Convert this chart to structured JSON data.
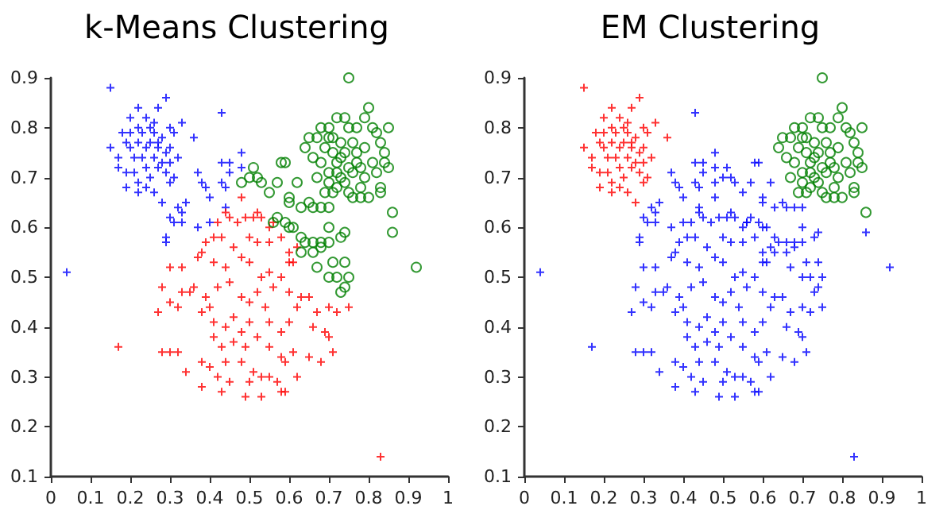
{
  "chart_data": [
    {
      "type": "scatter",
      "title": "k-Means Clustering",
      "xlim": [
        0,
        1
      ],
      "ylim": [
        0.1,
        0.9
      ],
      "xticks": [
        0,
        0.1,
        0.2,
        0.3,
        0.4,
        0.5,
        0.6,
        0.7,
        0.8,
        0.9,
        1
      ],
      "yticks": [
        0.1,
        0.2,
        0.3,
        0.4,
        0.5,
        0.6,
        0.7,
        0.8,
        0.9
      ],
      "series": [
        {
          "color": "#0000ff",
          "marker": "cross",
          "x": [
            0.15,
            0.15,
            0.22,
            0.24,
            0.29,
            0.27,
            0.2,
            0.18,
            0.2,
            0.22,
            0.25,
            0.26,
            0.28,
            0.3,
            0.31,
            0.33,
            0.36,
            0.3,
            0.27,
            0.24,
            0.22,
            0.2,
            0.19,
            0.23,
            0.26,
            0.28,
            0.3,
            0.32,
            0.17,
            0.17,
            0.19,
            0.21,
            0.24,
            0.27,
            0.29,
            0.31,
            0.3,
            0.25,
            0.22,
            0.19,
            0.22,
            0.26,
            0.24,
            0.28,
            0.29,
            0.21,
            0.25,
            0.23,
            0.26,
            0.27,
            0.43,
            0.43,
            0.45,
            0.48,
            0.48,
            0.45,
            0.37,
            0.38,
            0.39,
            0.4,
            0.43,
            0.44,
            0.34,
            0.32,
            0.3,
            0.33,
            0.33,
            0.31,
            0.37,
            0.4,
            0.44,
            0.29,
            0.29,
            0.04
          ],
          "values": [
            0.88,
            0.76,
            0.84,
            0.82,
            0.86,
            0.84,
            0.82,
            0.79,
            0.79,
            0.8,
            0.8,
            0.79,
            0.78,
            0.8,
            0.79,
            0.81,
            0.78,
            0.76,
            0.76,
            0.76,
            0.77,
            0.76,
            0.77,
            0.74,
            0.74,
            0.73,
            0.73,
            0.74,
            0.74,
            0.72,
            0.71,
            0.71,
            0.72,
            0.72,
            0.71,
            0.7,
            0.69,
            0.7,
            0.69,
            0.68,
            0.67,
            0.67,
            0.68,
            0.65,
            0.75,
            0.74,
            0.77,
            0.79,
            0.81,
            0.77,
            0.83,
            0.73,
            0.73,
            0.75,
            0.72,
            0.71,
            0.71,
            0.69,
            0.68,
            0.66,
            0.69,
            0.68,
            0.65,
            0.64,
            0.62,
            0.63,
            0.61,
            0.61,
            0.6,
            0.61,
            0.64,
            0.58,
            0.57,
            0.51
          ]
        },
        {
          "color": "#ff0000",
          "marker": "cross",
          "x": [
            0.48,
            0.44,
            0.45,
            0.42,
            0.49,
            0.52,
            0.53,
            0.51,
            0.47,
            0.56,
            0.55,
            0.41,
            0.39,
            0.38,
            0.43,
            0.46,
            0.5,
            0.52,
            0.55,
            0.58,
            0.6,
            0.62,
            0.37,
            0.41,
            0.44,
            0.48,
            0.5,
            0.53,
            0.55,
            0.6,
            0.61,
            0.3,
            0.33,
            0.36,
            0.35,
            0.33,
            0.28,
            0.39,
            0.42,
            0.45,
            0.48,
            0.5,
            0.52,
            0.54,
            0.56,
            0.58,
            0.6,
            0.63,
            0.65,
            0.62,
            0.67,
            0.7,
            0.72,
            0.75,
            0.27,
            0.3,
            0.32,
            0.38,
            0.4,
            0.41,
            0.44,
            0.46,
            0.48,
            0.5,
            0.52,
            0.55,
            0.58,
            0.6,
            0.66,
            0.69,
            0.7,
            0.41,
            0.43,
            0.46,
            0.49,
            0.55,
            0.58,
            0.61,
            0.65,
            0.71,
            0.28,
            0.3,
            0.32,
            0.38,
            0.4,
            0.44,
            0.48,
            0.51,
            0.55,
            0.59,
            0.62,
            0.68,
            0.34,
            0.42,
            0.45,
            0.5,
            0.53,
            0.57,
            0.38,
            0.43,
            0.49,
            0.53,
            0.58,
            0.59,
            0.17,
            0.83
          ],
          "values": [
            0.66,
            0.63,
            0.62,
            0.61,
            0.62,
            0.63,
            0.62,
            0.62,
            0.61,
            0.61,
            0.6,
            0.58,
            0.57,
            0.55,
            0.58,
            0.56,
            0.58,
            0.57,
            0.57,
            0.58,
            0.55,
            0.56,
            0.54,
            0.53,
            0.52,
            0.54,
            0.53,
            0.5,
            0.51,
            0.53,
            0.53,
            0.52,
            0.52,
            0.48,
            0.47,
            0.47,
            0.48,
            0.46,
            0.48,
            0.49,
            0.46,
            0.45,
            0.47,
            0.44,
            0.48,
            0.5,
            0.47,
            0.46,
            0.46,
            0.44,
            0.43,
            0.44,
            0.43,
            0.44,
            0.43,
            0.45,
            0.44,
            0.43,
            0.44,
            0.41,
            0.4,
            0.42,
            0.39,
            0.41,
            0.38,
            0.41,
            0.39,
            0.41,
            0.4,
            0.39,
            0.38,
            0.38,
            0.36,
            0.37,
            0.36,
            0.36,
            0.34,
            0.35,
            0.34,
            0.35,
            0.35,
            0.35,
            0.35,
            0.33,
            0.32,
            0.33,
            0.33,
            0.31,
            0.3,
            0.33,
            0.3,
            0.33,
            0.31,
            0.3,
            0.29,
            0.29,
            0.3,
            0.29,
            0.28,
            0.27,
            0.26,
            0.26,
            0.27,
            0.27,
            0.36,
            0.14
          ]
        },
        {
          "color": "#008000",
          "marker": "circle",
          "x": [
            0.75,
            0.8,
            0.72,
            0.74,
            0.79,
            0.7,
            0.75,
            0.77,
            0.81,
            0.85,
            0.82,
            0.65,
            0.67,
            0.7,
            0.73,
            0.76,
            0.79,
            0.83,
            0.64,
            0.69,
            0.71,
            0.74,
            0.77,
            0.84,
            0.66,
            0.68,
            0.72,
            0.75,
            0.78,
            0.81,
            0.84,
            0.7,
            0.73,
            0.76,
            0.79,
            0.82,
            0.67,
            0.7,
            0.72,
            0.75,
            0.78,
            0.74,
            0.69,
            0.71,
            0.76,
            0.78,
            0.8,
            0.83,
            0.83,
            0.85,
            0.72,
            0.77,
            0.73,
            0.71,
            0.68,
            0.86,
            0.51,
            0.5,
            0.52,
            0.48,
            0.53,
            0.55,
            0.57,
            0.58,
            0.59,
            0.6,
            0.6,
            0.62,
            0.63,
            0.65,
            0.66,
            0.68,
            0.7,
            0.57,
            0.59,
            0.6,
            0.61,
            0.63,
            0.64,
            0.66,
            0.68,
            0.7,
            0.68,
            0.66,
            0.63,
            0.67,
            0.7,
            0.74,
            0.73,
            0.71,
            0.74,
            0.7,
            0.72,
            0.75,
            0.74,
            0.73,
            0.86,
            0.92,
            0.56
          ],
          "values": [
            0.9,
            0.84,
            0.82,
            0.82,
            0.82,
            0.8,
            0.8,
            0.8,
            0.8,
            0.8,
            0.79,
            0.78,
            0.78,
            0.78,
            0.77,
            0.77,
            0.76,
            0.77,
            0.76,
            0.76,
            0.75,
            0.75,
            0.75,
            0.75,
            0.74,
            0.73,
            0.73,
            0.72,
            0.72,
            0.73,
            0.73,
            0.71,
            0.7,
            0.71,
            0.7,
            0.71,
            0.7,
            0.69,
            0.68,
            0.67,
            0.68,
            0.69,
            0.67,
            0.67,
            0.66,
            0.66,
            0.66,
            0.67,
            0.68,
            0.72,
            0.71,
            0.73,
            0.74,
            0.78,
            0.8,
            0.63,
            0.72,
            0.7,
            0.7,
            0.69,
            0.69,
            0.67,
            0.69,
            0.73,
            0.73,
            0.66,
            0.65,
            0.69,
            0.64,
            0.65,
            0.64,
            0.64,
            0.64,
            0.62,
            0.61,
            0.6,
            0.6,
            0.58,
            0.57,
            0.57,
            0.57,
            0.57,
            0.56,
            0.55,
            0.55,
            0.52,
            0.6,
            0.59,
            0.58,
            0.53,
            0.53,
            0.5,
            0.5,
            0.5,
            0.48,
            0.47,
            0.59,
            0.52,
            0.61
          ]
        }
      ]
    },
    {
      "type": "scatter",
      "title": "EM Clustering",
      "xlim": [
        0,
        1
      ],
      "ylim": [
        0.1,
        0.9
      ],
      "xticks": [
        0,
        0.1,
        0.2,
        0.3,
        0.4,
        0.5,
        0.6,
        0.7,
        0.8,
        0.9,
        1
      ],
      "yticks": [
        0.1,
        0.2,
        0.3,
        0.4,
        0.5,
        0.6,
        0.7,
        0.8,
        0.9
      ],
      "series": [
        {
          "color": "#ff0000",
          "marker": "cross",
          "x": [
            0.15,
            0.15,
            0.22,
            0.24,
            0.29,
            0.27,
            0.2,
            0.18,
            0.2,
            0.22,
            0.25,
            0.26,
            0.28,
            0.3,
            0.31,
            0.33,
            0.36,
            0.3,
            0.27,
            0.24,
            0.22,
            0.2,
            0.19,
            0.23,
            0.26,
            0.28,
            0.3,
            0.32,
            0.17,
            0.17,
            0.19,
            0.21,
            0.24,
            0.27,
            0.29,
            0.31,
            0.3,
            0.25,
            0.22,
            0.19,
            0.22,
            0.26,
            0.24,
            0.28,
            0.29,
            0.21,
            0.25,
            0.23,
            0.26,
            0.27
          ],
          "values": [
            0.88,
            0.76,
            0.84,
            0.82,
            0.86,
            0.84,
            0.82,
            0.79,
            0.79,
            0.8,
            0.8,
            0.79,
            0.78,
            0.8,
            0.79,
            0.81,
            0.78,
            0.76,
            0.76,
            0.76,
            0.77,
            0.76,
            0.77,
            0.74,
            0.74,
            0.73,
            0.73,
            0.74,
            0.74,
            0.72,
            0.71,
            0.71,
            0.72,
            0.72,
            0.71,
            0.7,
            0.69,
            0.7,
            0.69,
            0.68,
            0.67,
            0.67,
            0.68,
            0.65,
            0.75,
            0.74,
            0.77,
            0.79,
            0.81,
            0.77
          ]
        },
        {
          "color": "#0000ff",
          "marker": "cross",
          "x": [
            0.43,
            0.43,
            0.45,
            0.48,
            0.48,
            0.45,
            0.37,
            0.38,
            0.39,
            0.4,
            0.43,
            0.44,
            0.34,
            0.32,
            0.3,
            0.33,
            0.33,
            0.31,
            0.37,
            0.4,
            0.44,
            0.29,
            0.29,
            0.04,
            0.48,
            0.44,
            0.45,
            0.42,
            0.49,
            0.52,
            0.53,
            0.51,
            0.47,
            0.56,
            0.55,
            0.41,
            0.39,
            0.38,
            0.43,
            0.46,
            0.5,
            0.52,
            0.55,
            0.58,
            0.6,
            0.62,
            0.37,
            0.41,
            0.44,
            0.48,
            0.5,
            0.53,
            0.55,
            0.6,
            0.61,
            0.3,
            0.33,
            0.36,
            0.35,
            0.33,
            0.28,
            0.39,
            0.42,
            0.45,
            0.48,
            0.5,
            0.52,
            0.54,
            0.56,
            0.58,
            0.6,
            0.63,
            0.65,
            0.62,
            0.67,
            0.7,
            0.72,
            0.75,
            0.27,
            0.3,
            0.32,
            0.38,
            0.4,
            0.41,
            0.44,
            0.46,
            0.48,
            0.5,
            0.52,
            0.55,
            0.58,
            0.6,
            0.66,
            0.69,
            0.7,
            0.41,
            0.43,
            0.46,
            0.49,
            0.55,
            0.58,
            0.61,
            0.65,
            0.71,
            0.28,
            0.3,
            0.32,
            0.38,
            0.4,
            0.44,
            0.48,
            0.51,
            0.55,
            0.59,
            0.62,
            0.68,
            0.34,
            0.42,
            0.45,
            0.5,
            0.53,
            0.57,
            0.38,
            0.43,
            0.49,
            0.53,
            0.58,
            0.59,
            0.17,
            0.83,
            0.51,
            0.5,
            0.52,
            0.48,
            0.53,
            0.55,
            0.57,
            0.58,
            0.59,
            0.6,
            0.6,
            0.62,
            0.63,
            0.65,
            0.66,
            0.68,
            0.7,
            0.57,
            0.59,
            0.6,
            0.61,
            0.63,
            0.64,
            0.66,
            0.68,
            0.7,
            0.68,
            0.66,
            0.63,
            0.67,
            0.7,
            0.74,
            0.73,
            0.71,
            0.74,
            0.7,
            0.72,
            0.75,
            0.74,
            0.73,
            0.86,
            0.92,
            0.56
          ],
          "values": [
            0.83,
            0.73,
            0.73,
            0.75,
            0.72,
            0.71,
            0.71,
            0.69,
            0.68,
            0.66,
            0.69,
            0.68,
            0.65,
            0.64,
            0.62,
            0.63,
            0.61,
            0.61,
            0.6,
            0.61,
            0.64,
            0.58,
            0.57,
            0.51,
            0.66,
            0.63,
            0.62,
            0.61,
            0.62,
            0.63,
            0.62,
            0.62,
            0.61,
            0.61,
            0.6,
            0.58,
            0.57,
            0.55,
            0.58,
            0.56,
            0.58,
            0.57,
            0.57,
            0.58,
            0.55,
            0.56,
            0.54,
            0.53,
            0.52,
            0.54,
            0.53,
            0.5,
            0.51,
            0.53,
            0.53,
            0.52,
            0.52,
            0.48,
            0.47,
            0.47,
            0.48,
            0.46,
            0.48,
            0.49,
            0.46,
            0.45,
            0.47,
            0.44,
            0.48,
            0.5,
            0.47,
            0.46,
            0.46,
            0.44,
            0.43,
            0.44,
            0.43,
            0.44,
            0.43,
            0.45,
            0.44,
            0.43,
            0.44,
            0.41,
            0.4,
            0.42,
            0.39,
            0.41,
            0.38,
            0.41,
            0.39,
            0.41,
            0.4,
            0.39,
            0.38,
            0.38,
            0.36,
            0.37,
            0.36,
            0.36,
            0.34,
            0.35,
            0.34,
            0.35,
            0.35,
            0.35,
            0.35,
            0.33,
            0.32,
            0.33,
            0.33,
            0.31,
            0.3,
            0.33,
            0.3,
            0.33,
            0.31,
            0.3,
            0.29,
            0.29,
            0.3,
            0.29,
            0.28,
            0.27,
            0.26,
            0.26,
            0.27,
            0.27,
            0.36,
            0.14,
            0.72,
            0.7,
            0.7,
            0.69,
            0.69,
            0.67,
            0.69,
            0.73,
            0.73,
            0.66,
            0.65,
            0.69,
            0.64,
            0.65,
            0.64,
            0.64,
            0.64,
            0.62,
            0.61,
            0.6,
            0.6,
            0.58,
            0.57,
            0.57,
            0.57,
            0.57,
            0.56,
            0.55,
            0.55,
            0.52,
            0.6,
            0.59,
            0.58,
            0.53,
            0.53,
            0.5,
            0.5,
            0.5,
            0.48,
            0.47,
            0.59,
            0.52,
            0.61
          ]
        },
        {
          "color": "#008000",
          "marker": "circle",
          "x": [
            0.75,
            0.8,
            0.72,
            0.74,
            0.79,
            0.7,
            0.75,
            0.77,
            0.81,
            0.85,
            0.82,
            0.65,
            0.67,
            0.7,
            0.73,
            0.76,
            0.79,
            0.83,
            0.64,
            0.69,
            0.71,
            0.74,
            0.77,
            0.84,
            0.66,
            0.68,
            0.72,
            0.75,
            0.78,
            0.81,
            0.84,
            0.7,
            0.73,
            0.76,
            0.79,
            0.82,
            0.67,
            0.7,
            0.72,
            0.75,
            0.78,
            0.74,
            0.69,
            0.71,
            0.76,
            0.78,
            0.8,
            0.83,
            0.83,
            0.85,
            0.72,
            0.77,
            0.73,
            0.71,
            0.68,
            0.86
          ],
          "values": [
            0.9,
            0.84,
            0.82,
            0.82,
            0.82,
            0.8,
            0.8,
            0.8,
            0.8,
            0.8,
            0.79,
            0.78,
            0.78,
            0.78,
            0.77,
            0.77,
            0.76,
            0.77,
            0.76,
            0.76,
            0.75,
            0.75,
            0.75,
            0.75,
            0.74,
            0.73,
            0.73,
            0.72,
            0.72,
            0.73,
            0.73,
            0.71,
            0.7,
            0.71,
            0.7,
            0.71,
            0.7,
            0.69,
            0.68,
            0.67,
            0.68,
            0.69,
            0.67,
            0.67,
            0.66,
            0.66,
            0.66,
            0.67,
            0.68,
            0.72,
            0.71,
            0.73,
            0.74,
            0.78,
            0.8,
            0.63
          ]
        }
      ]
    }
  ]
}
